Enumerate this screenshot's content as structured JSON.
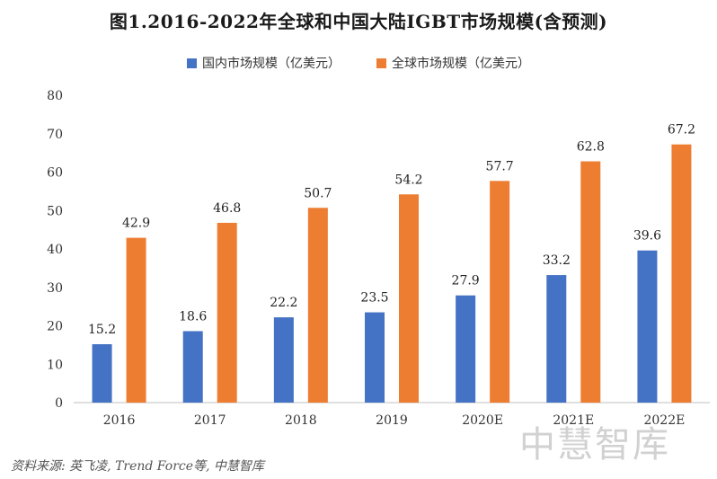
{
  "chart_data": {
    "type": "bar",
    "title": "图1.2016-2022年全球和中国大陆IGBT市场规模(含预测)",
    "categories": [
      "2016",
      "2017",
      "2018",
      "2019",
      "2020E",
      "2021E",
      "2022E"
    ],
    "series": [
      {
        "name": "国内市场规模（亿美元）",
        "color": "#4472c4",
        "values": [
          15.2,
          18.6,
          22.2,
          23.5,
          27.9,
          33.2,
          39.6
        ],
        "labels": [
          "15.2",
          "18.6",
          "22.2",
          "23.5",
          "27.9",
          "33.2",
          "39.6"
        ]
      },
      {
        "name": "全球市场规模（亿美元）",
        "color": "#ed7d31",
        "values": [
          42.9,
          46.8,
          50.7,
          54.2,
          57.7,
          62.8,
          67.2
        ],
        "labels": [
          "42.9",
          "46.8",
          "50.7",
          "54.2",
          "57.7",
          "62.8",
          "67.2"
        ]
      }
    ],
    "ylim": [
      0,
      80
    ],
    "yticks": [
      "0",
      "10",
      "20",
      "30",
      "40",
      "50",
      "60",
      "70",
      "80"
    ],
    "grid": false,
    "legend_position": "top-center"
  },
  "source": "资料来源: 英飞凌, Trend Force等, 中慧智库",
  "watermark": "中慧智库"
}
